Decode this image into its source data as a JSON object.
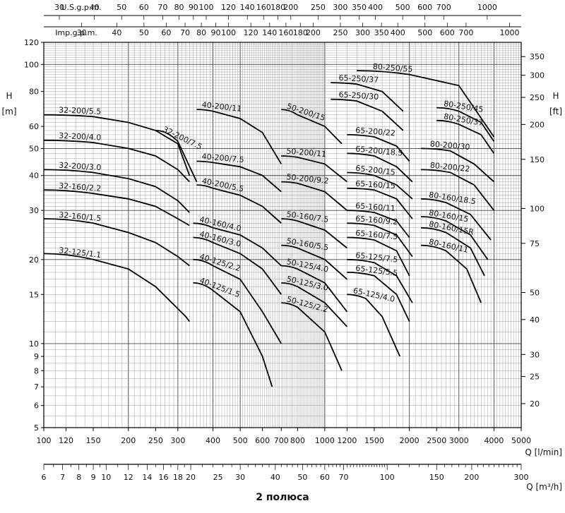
{
  "chart_data": {
    "type": "line",
    "title": "",
    "caption": "2 полюса",
    "x_axis": {
      "label": "Q [l/min]",
      "scale": "log",
      "range": [
        100,
        5000
      ],
      "ticks": [
        "100",
        "120",
        "150",
        "200",
        "250",
        "300",
        "400",
        "500",
        "600",
        "700",
        "800",
        "1000",
        "1200",
        "1500",
        "2000",
        "2500",
        "3000",
        "4000",
        "5000"
      ]
    },
    "x_axis_m3h": {
      "label": "Q [m³/h]",
      "scale": "log",
      "range": [
        6,
        300
      ],
      "ticks": [
        "6",
        "7",
        "8",
        "9",
        "10",
        "12",
        "14",
        "16",
        "18",
        "20",
        "25",
        "30",
        "40",
        "50",
        "60",
        "70",
        "100",
        "150",
        "200",
        "300"
      ]
    },
    "x_axis_usgpm": {
      "label": "U.S.g.p.m.",
      "scale": "log",
      "range": [
        26.4,
        1321
      ],
      "ticks": [
        "30",
        "40",
        "50",
        "60",
        "70",
        "80",
        "90",
        "100",
        "120",
        "140",
        "160",
        "180",
        "200",
        "250",
        "300",
        "350",
        "400",
        "500",
        "600",
        "700",
        "1000"
      ]
    },
    "x_axis_impgpm": {
      "label": "Imp.g.p.m.",
      "scale": "log",
      "range": [
        22,
        1100
      ],
      "ticks": [
        "30",
        "40",
        "50",
        "60",
        "70",
        "80",
        "90",
        "100",
        "120",
        "140",
        "160",
        "180",
        "200",
        "250",
        "300",
        "350",
        "400",
        "500",
        "600",
        "700",
        "1000"
      ]
    },
    "y_axis": {
      "label": "H",
      "unit": "[m]",
      "scale": "log",
      "range": [
        5,
        120
      ],
      "ticks": [
        "5",
        "6",
        "7",
        "8",
        "9",
        "10",
        "15",
        "20",
        "30",
        "40",
        "50",
        "60",
        "80",
        "100",
        "120"
      ]
    },
    "y_axis_ft": {
      "label": "H",
      "unit": "[ft]",
      "scale": "log",
      "range": [
        16.4,
        394
      ],
      "ticks": [
        "20",
        "25",
        "30",
        "40",
        "50",
        "75",
        "100",
        "150",
        "200",
        "250",
        "300",
        "350"
      ]
    },
    "series": [
      {
        "name": "32-125/1.1",
        "x": [
          100,
          150,
          200,
          250,
          320,
          330
        ],
        "y": [
          21,
          20,
          18.5,
          16,
          12.5,
          12
        ]
      },
      {
        "name": "32-160/1.5",
        "x": [
          100,
          150,
          200,
          250,
          300,
          330
        ],
        "y": [
          28,
          27,
          25,
          23,
          20.5,
          19
        ]
      },
      {
        "name": "32-160/2.2",
        "x": [
          100,
          150,
          200,
          250,
          300,
          330
        ],
        "y": [
          35.5,
          34.5,
          33,
          31,
          28,
          26.5
        ]
      },
      {
        "name": "32-200/3.0",
        "x": [
          100,
          150,
          200,
          250,
          300,
          330
        ],
        "y": [
          42,
          41,
          39,
          36.5,
          32.5,
          29.5
        ]
      },
      {
        "name": "32-200/4.0",
        "x": [
          100,
          150,
          200,
          250,
          300,
          330
        ],
        "y": [
          53.5,
          52.5,
          50,
          47,
          42,
          38
        ]
      },
      {
        "name": "32-200/5.5",
        "x": [
          100,
          150,
          200,
          250,
          300,
          330
        ],
        "y": [
          66,
          65,
          62,
          58,
          52,
          40
        ]
      },
      {
        "name": "32-200/7.5",
        "x": [
          250,
          300,
          350
        ],
        "y": [
          58,
          53,
          38
        ]
      },
      {
        "name": "40-125/1.5",
        "x": [
          340,
          400,
          500,
          600,
          650
        ],
        "y": [
          16.5,
          15.5,
          13,
          9,
          7
        ]
      },
      {
        "name": "40-125/2.2",
        "x": [
          340,
          400,
          500,
          600,
          700
        ],
        "y": [
          20,
          19,
          17,
          13,
          10
        ]
      },
      {
        "name": "40-160/3.0",
        "x": [
          340,
          400,
          500,
          600,
          700
        ],
        "y": [
          24,
          23,
          21,
          18.5,
          15
        ]
      },
      {
        "name": "40-160/4.0",
        "x": [
          340,
          400,
          500,
          600,
          700
        ],
        "y": [
          27,
          26,
          24.5,
          22,
          19
        ]
      },
      {
        "name": "40-200/5.5",
        "x": [
          350,
          400,
          500,
          600,
          700
        ],
        "y": [
          37,
          36,
          34,
          31,
          27
        ]
      },
      {
        "name": "40-200/7.5",
        "x": [
          350,
          400,
          500,
          600,
          700
        ],
        "y": [
          45,
          44.5,
          43,
          40,
          35
        ]
      },
      {
        "name": "40-200/11",
        "x": [
          350,
          400,
          500,
          600,
          700
        ],
        "y": [
          69,
          68,
          64,
          57,
          44
        ]
      },
      {
        "name": "50-125/2.2",
        "x": [
          700,
          800,
          1000,
          1150
        ],
        "y": [
          14,
          13.5,
          11,
          8
        ]
      },
      {
        "name": "50-125/3.0",
        "x": [
          700,
          800,
          1000,
          1200
        ],
        "y": [
          16.5,
          16,
          14,
          11.5
        ]
      },
      {
        "name": "50-125/4.0",
        "x": [
          700,
          800,
          1000,
          1200
        ],
        "y": [
          19,
          18.5,
          16.5,
          13
        ]
      },
      {
        "name": "50-160/5.5",
        "x": [
          700,
          800,
          1000,
          1200
        ],
        "y": [
          22.5,
          22,
          20,
          17
        ]
      },
      {
        "name": "50-160/7.5",
        "x": [
          700,
          800,
          1000,
          1200
        ],
        "y": [
          28,
          27.5,
          25.5,
          22
        ]
      },
      {
        "name": "50-200/9.2",
        "x": [
          700,
          800,
          1000,
          1200
        ],
        "y": [
          38,
          37.5,
          35,
          30
        ]
      },
      {
        "name": "50-200/11",
        "x": [
          700,
          800,
          1000,
          1200
        ],
        "y": [
          47,
          46.5,
          44,
          38
        ]
      },
      {
        "name": "50-200/15",
        "x": [
          700,
          800,
          1000,
          1150
        ],
        "y": [
          69,
          66,
          60,
          52
        ]
      },
      {
        "name": "65-125/4.0",
        "x": [
          1200,
          1400,
          1600,
          1850
        ],
        "y": [
          15,
          14.5,
          12.5,
          9
        ]
      },
      {
        "name": "65-125/5.5",
        "x": [
          1200,
          1500,
          1800,
          2000
        ],
        "y": [
          18,
          17.5,
          15,
          12
        ]
      },
      {
        "name": "65-125/7.5",
        "x": [
          1200,
          1500,
          1800,
          2050
        ],
        "y": [
          20,
          19.5,
          17.5,
          14
        ]
      },
      {
        "name": "65-160/7.5",
        "x": [
          1200,
          1500,
          1800,
          2000
        ],
        "y": [
          24,
          23.5,
          21.5,
          17.5
        ]
      },
      {
        "name": "65-160/9.2",
        "x": [
          1200,
          1500,
          1800,
          2050
        ],
        "y": [
          27,
          26.5,
          24.5,
          20.5
        ]
      },
      {
        "name": "65-160/11",
        "x": [
          1200,
          1500,
          1800,
          2000
        ],
        "y": [
          30,
          29.5,
          27.5,
          24
        ]
      },
      {
        "name": "65-160/15",
        "x": [
          1200,
          1500,
          1800,
          2050
        ],
        "y": [
          36,
          35.5,
          33,
          28
        ]
      },
      {
        "name": "65-200/15",
        "x": [
          1200,
          1500,
          1800,
          2050
        ],
        "y": [
          41,
          40,
          37,
          33
        ]
      },
      {
        "name": "65-200/18.5",
        "x": [
          1200,
          1500,
          1800,
          2050
        ],
        "y": [
          48,
          47,
          43,
          38
        ]
      },
      {
        "name": "65-200/22",
        "x": [
          1200,
          1500,
          1800,
          2000
        ],
        "y": [
          56,
          55,
          51,
          45
        ]
      },
      {
        "name": "65-250/30",
        "x": [
          1050,
          1300,
          1600,
          1900
        ],
        "y": [
          75,
          74,
          68,
          58
        ]
      },
      {
        "name": "65-250/37",
        "x": [
          1050,
          1300,
          1600,
          1900
        ],
        "y": [
          86,
          85,
          80,
          68
        ]
      },
      {
        "name": "80-160/11",
        "x": [
          2200,
          2700,
          3200,
          3600
        ],
        "y": [
          22.5,
          21.5,
          18.5,
          14
        ]
      },
      {
        "name": "80-160/15R",
        "x": [
          2200,
          2700,
          3300,
          3700
        ],
        "y": [
          26,
          25,
          22,
          17.5
        ]
      },
      {
        "name": "80-160/15",
        "x": [
          2200,
          2700,
          3300,
          3800
        ],
        "y": [
          28.5,
          27.5,
          24.5,
          20
        ]
      },
      {
        "name": "80-160/18.5",
        "x": [
          2200,
          2700,
          3300,
          3900
        ],
        "y": [
          33,
          32,
          29,
          23.5
        ]
      },
      {
        "name": "80-200/22",
        "x": [
          2200,
          2800,
          3400,
          4000
        ],
        "y": [
          42,
          41,
          37,
          30
        ]
      },
      {
        "name": "80-200/30",
        "x": [
          2200,
          2800,
          3400,
          4000
        ],
        "y": [
          50,
          49,
          44,
          38
        ]
      },
      {
        "name": "80-250/37",
        "x": [
          2500,
          3000,
          3600,
          4000
        ],
        "y": [
          63,
          61,
          56,
          48
        ]
      },
      {
        "name": "80-250/45",
        "x": [
          2500,
          3000,
          3600,
          4000
        ],
        "y": [
          70,
          68,
          62,
          53
        ]
      },
      {
        "name": "80-250/55",
        "x": [
          1300,
          2000,
          3000,
          4000
        ],
        "y": [
          95,
          92,
          84,
          55
        ]
      }
    ],
    "grid": true,
    "legend": "none"
  }
}
